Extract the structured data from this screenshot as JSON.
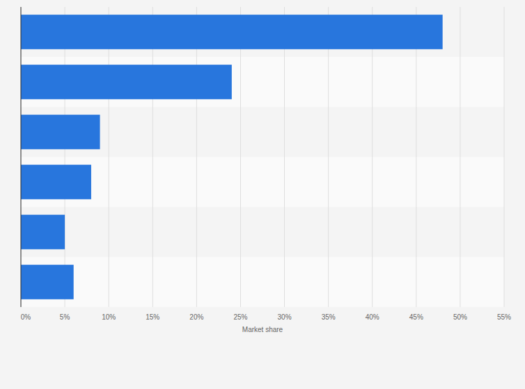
{
  "chart_data": {
    "type": "bar",
    "orientation": "horizontal",
    "categories": [
      null,
      null,
      null,
      null,
      null,
      null
    ],
    "values": [
      48,
      24,
      9,
      8,
      5,
      6
    ],
    "color": "#2876dd",
    "x_label": "Market share",
    "xlim": [
      0,
      55
    ],
    "xticks": [
      {
        "value": 0,
        "label": "0%"
      },
      {
        "value": 5,
        "label": "5%"
      },
      {
        "value": 10,
        "label": "10%"
      },
      {
        "value": 15,
        "label": "15%"
      },
      {
        "value": 20,
        "label": "20%"
      },
      {
        "value": 25,
        "label": "25%"
      },
      {
        "value": 30,
        "label": "30%"
      },
      {
        "value": 35,
        "label": "35%"
      },
      {
        "value": 40,
        "label": "40%"
      },
      {
        "value": 45,
        "label": "45%"
      },
      {
        "value": 50,
        "label": "50%"
      },
      {
        "value": 55,
        "label": "55%"
      }
    ],
    "grid": true
  }
}
